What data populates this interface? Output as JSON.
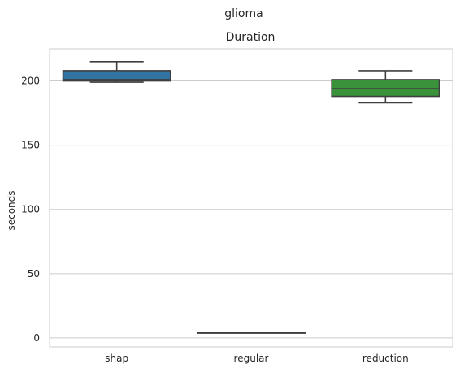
{
  "chart_data": {
    "type": "box",
    "suptitle": "glioma",
    "title": "Duration",
    "xlabel": "",
    "ylabel": "seconds",
    "ylim": [
      -7,
      225
    ],
    "yticks": [
      0,
      50,
      100,
      150,
      200
    ],
    "grid": true,
    "categories": [
      "shap",
      "regular",
      "reduction"
    ],
    "boxes": [
      {
        "category": "shap",
        "min": 199,
        "q1": 200,
        "median": 201,
        "q3": 208,
        "max": 215,
        "color": "#3274a1"
      },
      {
        "category": "regular",
        "min": 4,
        "q1": 4,
        "median": 4,
        "q3": 4,
        "max": 4,
        "color": "#e1812c"
      },
      {
        "category": "reduction",
        "min": 183,
        "q1": 188,
        "median": 194,
        "q3": 201,
        "max": 208,
        "color": "#3a923a"
      }
    ]
  }
}
